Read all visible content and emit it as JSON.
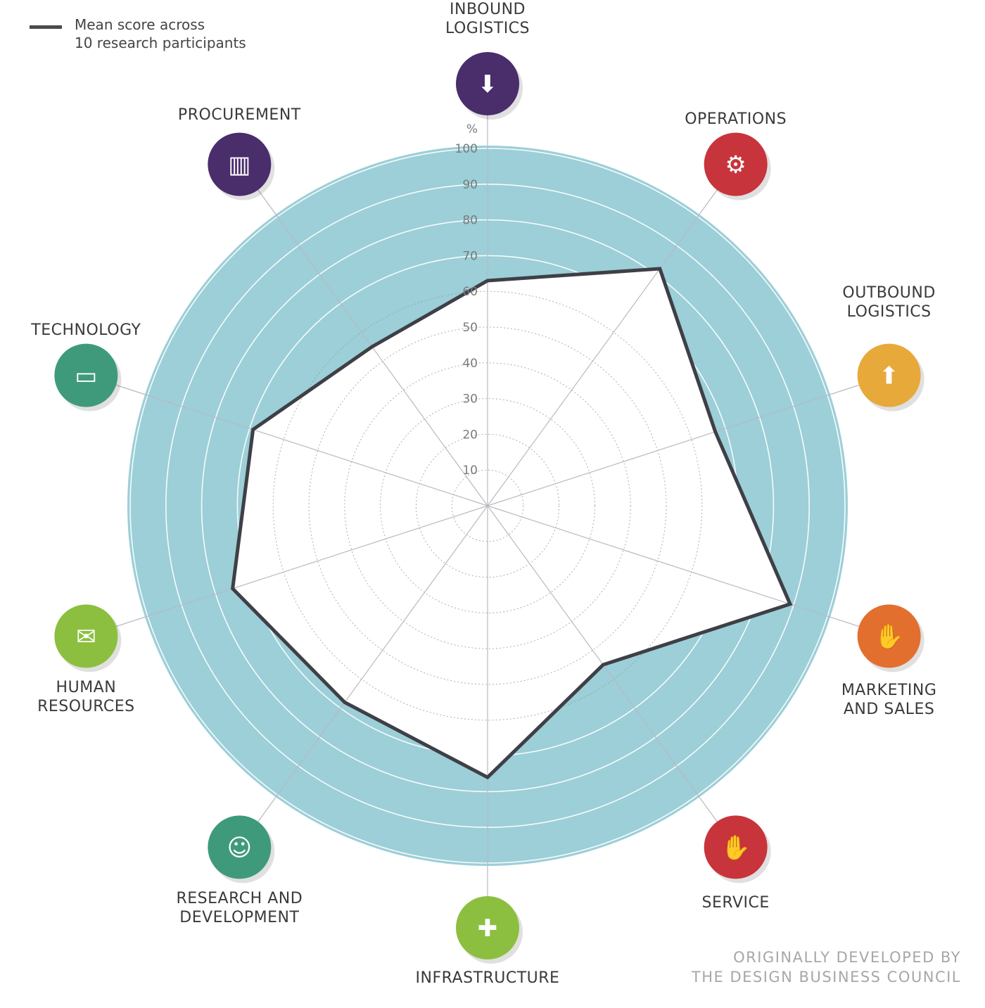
{
  "legend": {
    "line1": "Mean score across",
    "line2": "10 research participants",
    "line_color": "#4a4a4a"
  },
  "credit": {
    "line1": "ORIGINALLY DEVELOPED BY",
    "line2": "THE DESIGN BUSINESS COUNCIL"
  },
  "colors": {
    "band": "#9ccfd8",
    "polygon_stroke": "#3f3f46",
    "polygon_fill": "#ffffff"
  },
  "chart_data": {
    "type": "radar",
    "unit_label": "%",
    "rlim": [
      0,
      100
    ],
    "tick_labels": [
      "10",
      "20",
      "30",
      "40",
      "50",
      "60",
      "70",
      "80",
      "90",
      "100"
    ],
    "series": [
      {
        "name": "Mean score across 10 research participants",
        "axes": [
          {
            "name": "INBOUND LOGISTICS",
            "line1": "INBOUND",
            "line2": "LOGISTICS",
            "value": 63,
            "color": "#4a2d6b",
            "icon": "box-down-icon"
          },
          {
            "name": "OPERATIONS",
            "line1": "OPERATIONS",
            "line2": "",
            "value": 82,
            "color": "#c8343b",
            "icon": "gear-icon"
          },
          {
            "name": "OUTBOUND LOGISTICS",
            "line1": "OUTBOUND",
            "line2": "LOGISTICS",
            "value": 67,
            "color": "#e7a93a",
            "icon": "box-up-icon"
          },
          {
            "name": "MARKETING AND SALES",
            "line1": "MARKETING",
            "line2": "AND SALES",
            "value": 89,
            "color": "#e36f2f",
            "icon": "handshake-icon"
          },
          {
            "name": "SERVICE",
            "line1": "SERVICE",
            "line2": "",
            "value": 55,
            "color": "#c8343b",
            "icon": "hands-icon"
          },
          {
            "name": "INFRASTRUCTURE",
            "line1": "INFRASTRUCTURE",
            "line2": "",
            "value": 76,
            "color": "#8cbf3f",
            "icon": "puzzle-icon"
          },
          {
            "name": "RESEARCH AND DEVELOPMENT",
            "line1": "RESEARCH AND",
            "line2": "DEVELOPMENT",
            "value": 68,
            "color": "#3f9a7b",
            "icon": "head-icon"
          },
          {
            "name": "HUMAN RESOURCES",
            "line1": "HUMAN",
            "line2": "RESOURCES",
            "value": 75,
            "color": "#8cbf3f",
            "icon": "speech-bubbles-icon"
          },
          {
            "name": "TECHNOLOGY",
            "line1": "TECHNOLOGY",
            "line2": "",
            "value": 69,
            "color": "#3f9a7b",
            "icon": "laptop-icon"
          },
          {
            "name": "PROCUREMENT",
            "line1": "PROCUREMENT",
            "line2": "",
            "value": 55,
            "color": "#4a2d6b",
            "icon": "barcode-icon"
          }
        ]
      }
    ]
  }
}
